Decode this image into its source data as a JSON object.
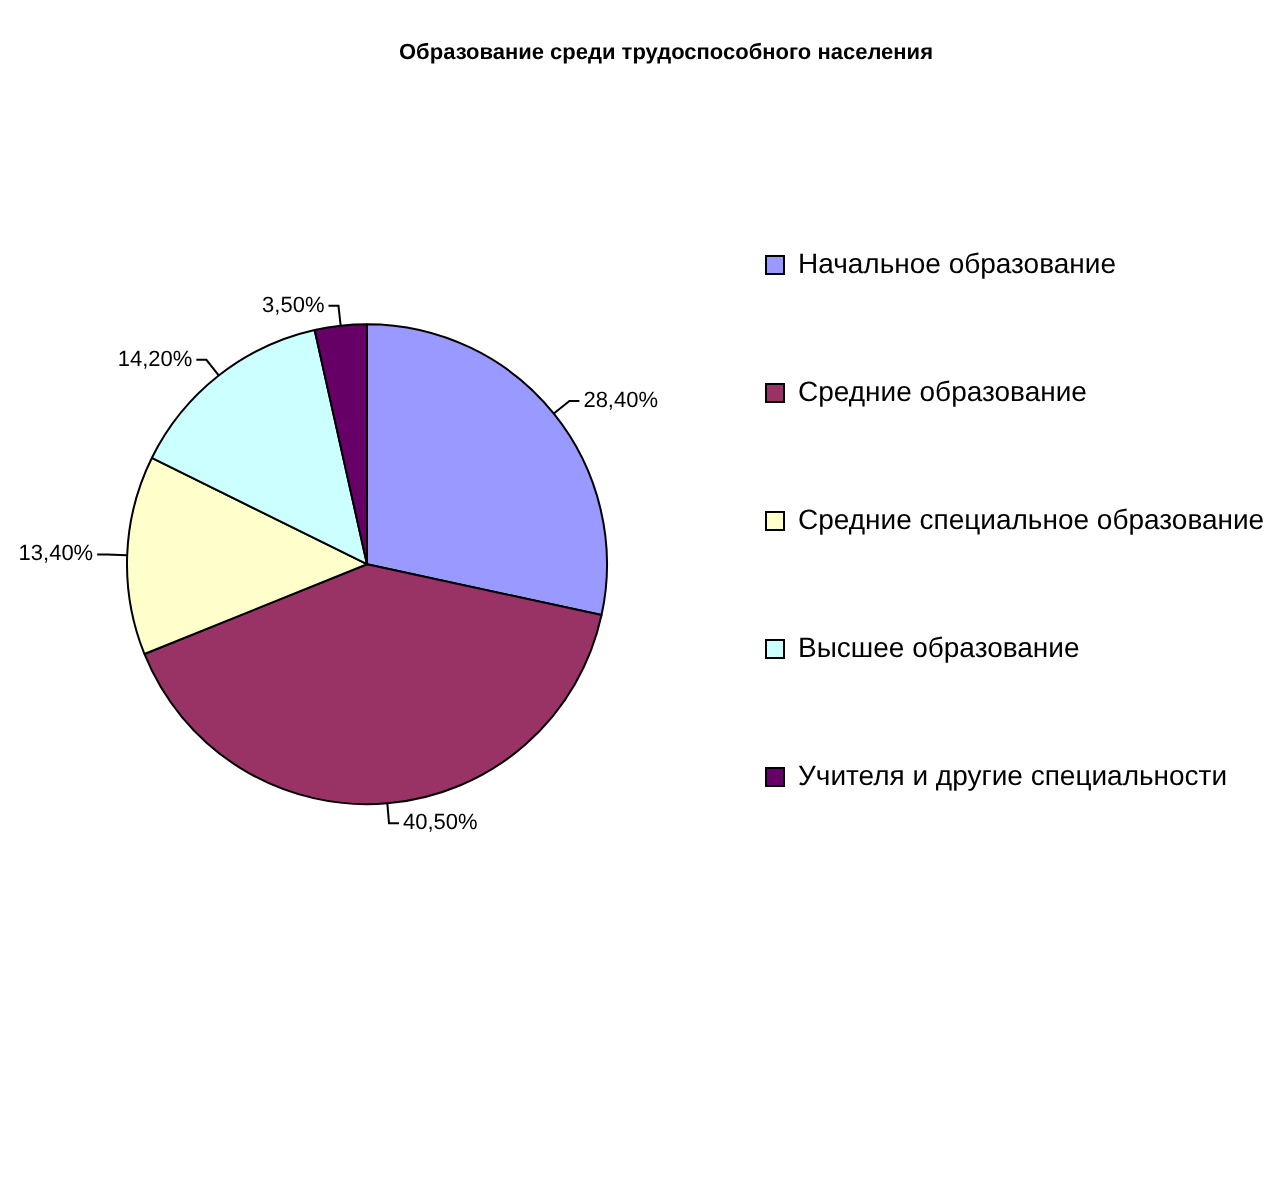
{
  "chart_data": {
    "type": "pie",
    "title": "Образование среди трудоспособного населения",
    "categories": [
      "Начальное образование",
      "Средние образование",
      "Средние специальное образование",
      "Высшее образование",
      "Учителя и другие специальности"
    ],
    "values": [
      28.4,
      40.5,
      13.4,
      14.2,
      3.5
    ],
    "value_labels": [
      "28,40%",
      "40,50%",
      "13,40%",
      "14,20%",
      "3,50%"
    ],
    "colors": [
      "#9999ff",
      "#993366",
      "#ffffcc",
      "#ccffff",
      "#660066"
    ],
    "legend": "right"
  }
}
